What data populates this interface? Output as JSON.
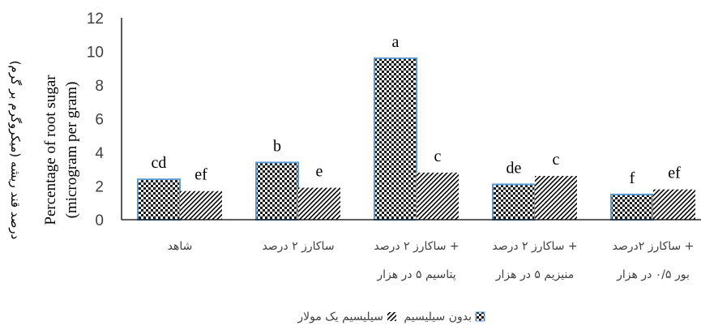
{
  "chart_data": {
    "type": "bar",
    "categories": [
      [
        "شاهد"
      ],
      [
        "ساکارز ۲ درصد"
      ],
      [
        "ساکارز ۲ درصد +",
        "پتاسیم ۵ در هزار"
      ],
      [
        "ساکارز ۲ درصد +",
        "منیزیم ۵ در هزار"
      ],
      [
        "ساکارز ۲درصد +",
        "بور ۰/۵ در هزار"
      ]
    ],
    "series": [
      {
        "name": "بدون سیلیسیم",
        "values": [
          2.4,
          3.4,
          9.6,
          2.1,
          1.5
        ],
        "labels": [
          "cd",
          "b",
          "a",
          "de",
          "f"
        ],
        "pattern": "checker"
      },
      {
        "name": "سیلیسیم یک مولار",
        "values": [
          1.7,
          1.9,
          2.8,
          2.6,
          1.8
        ],
        "labels": [
          "ef",
          "e",
          "c",
          "c",
          "ef"
        ],
        "pattern": "hatch"
      }
    ],
    "ylim": [
      0,
      12
    ],
    "yticks": [
      "0",
      "2",
      "4",
      "6",
      "8",
      "10",
      "12"
    ],
    "ylabel_fa": "درصد قند ریشه (میکروگرم بر گرم)",
    "ylabel_en": [
      "Percentage of root sugar",
      "(microgram per gram)"
    ],
    "grid": false,
    "legend_position": "bottom",
    "colors": {
      "bar_outline": "#5b9bd5",
      "checker_dark": "#1a1a1a",
      "hatch_line": "#000000",
      "axis": "#000000",
      "text": "#404040"
    }
  }
}
